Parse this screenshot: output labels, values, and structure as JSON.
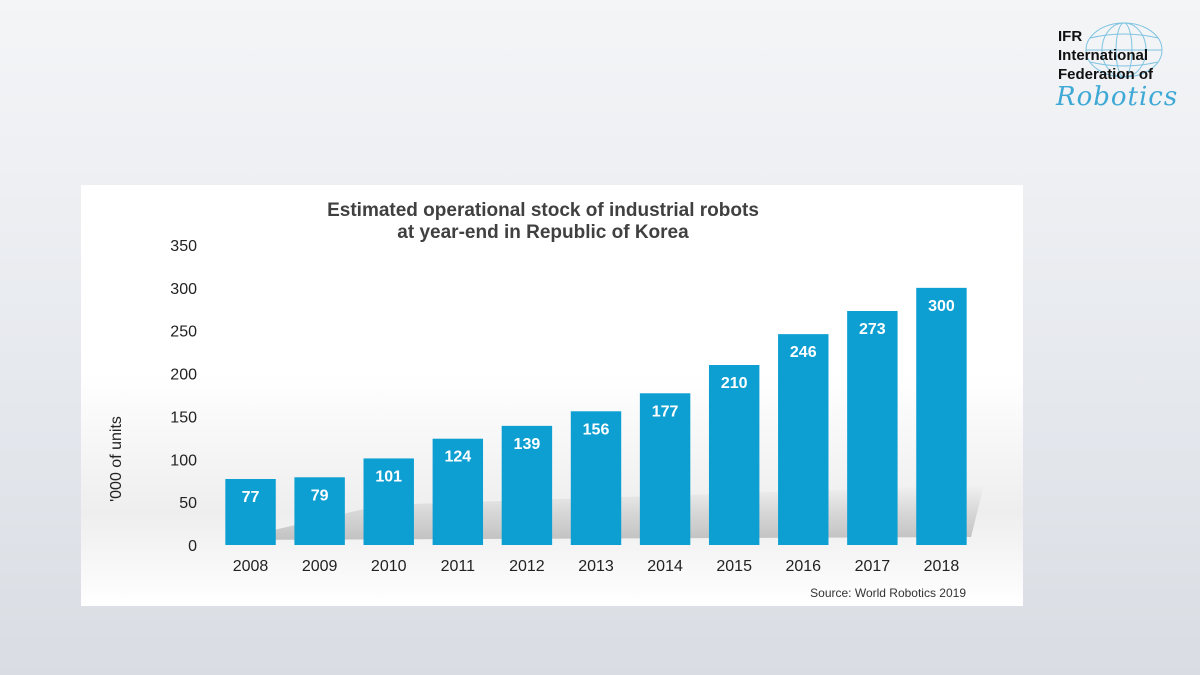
{
  "logo": {
    "line1": "IFR",
    "line2": "International",
    "line3": "Federation of",
    "script": "Robotics",
    "color": "#3fa9d6"
  },
  "chart_data": {
    "type": "bar",
    "title_line1": "Estimated operational stock of industrial robots",
    "title_line2": "at year-end in Republic of Korea",
    "ylabel": "'000 of units",
    "xlabel": "",
    "ylim": [
      0,
      350
    ],
    "yticks": [
      0,
      50,
      100,
      150,
      200,
      250,
      300,
      350
    ],
    "categories": [
      "2008",
      "2009",
      "2010",
      "2011",
      "2012",
      "2013",
      "2014",
      "2015",
      "2016",
      "2017",
      "2018"
    ],
    "values": [
      77,
      79,
      101,
      124,
      139,
      156,
      177,
      210,
      246,
      273,
      300
    ],
    "bar_color": "#0e9fd2",
    "grid": false,
    "source": "Source: World Robotics 2019"
  }
}
